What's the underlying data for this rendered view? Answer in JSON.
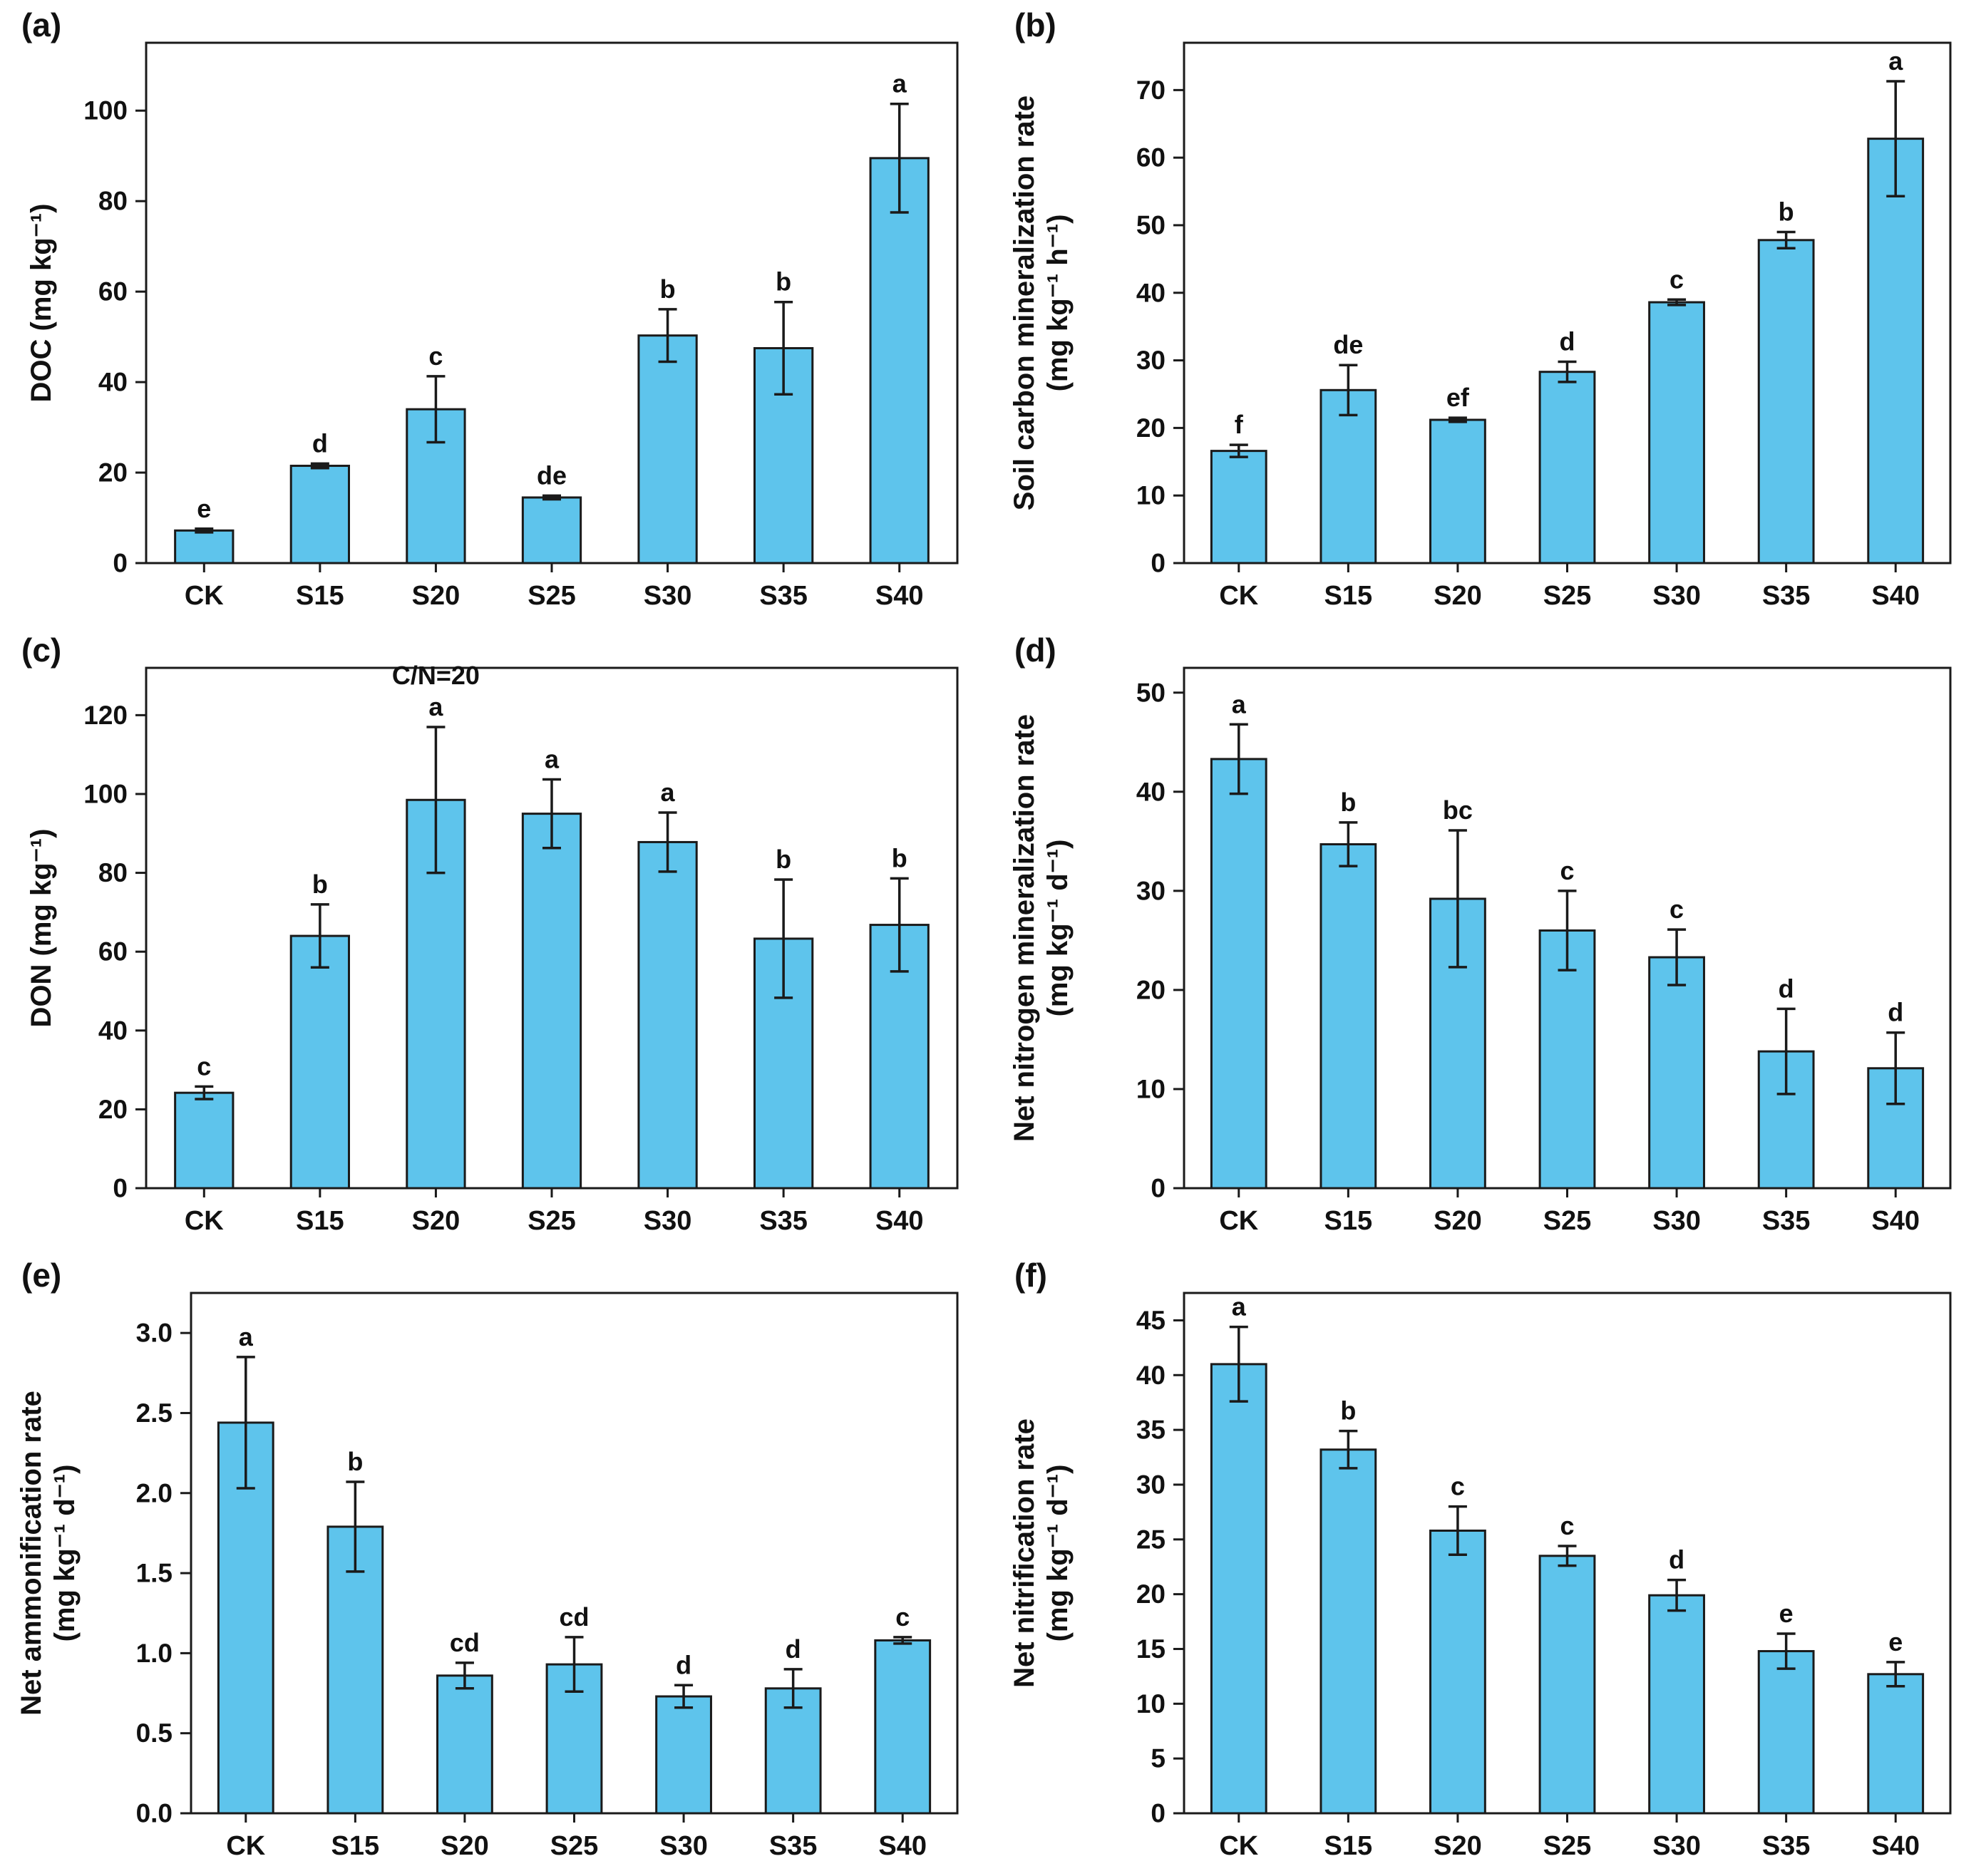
{
  "figure": {
    "background": "#ffffff",
    "bar_fill": "#5ec4ec",
    "bar_stroke": "#1a1a1a",
    "axis_color": "#1a1a1a",
    "categories": [
      "CK",
      "S15",
      "S20",
      "S25",
      "S30",
      "S35",
      "S40"
    ]
  },
  "chart_data": [
    {
      "id": "a",
      "type": "bar",
      "panel_label": "(a)",
      "ylabel_lines": [
        "DOC (mg kg⁻¹)"
      ],
      "ylim": [
        0,
        115
      ],
      "yticks": [
        0,
        20,
        40,
        60,
        80,
        100
      ],
      "ytick_labels": [
        "0",
        "20",
        "40",
        "60",
        "80",
        "100"
      ],
      "categories": [
        "CK",
        "S15",
        "S20",
        "S25",
        "S30",
        "S35",
        "S40"
      ],
      "values": [
        7.2,
        21.5,
        34.0,
        14.5,
        50.3,
        47.5,
        89.5
      ],
      "errors": [
        0.4,
        0.5,
        7.3,
        0.4,
        5.8,
        10.2,
        12.0
      ],
      "letters": [
        "e",
        "d",
        "c",
        "de",
        "b",
        "b",
        "a"
      ],
      "annotation": null
    },
    {
      "id": "b",
      "type": "bar",
      "panel_label": "(b)",
      "ylabel_lines": [
        "Soil carbon mineralization rate",
        "(mg kg⁻¹ h⁻¹)"
      ],
      "ylim": [
        0,
        77
      ],
      "yticks": [
        0,
        10,
        20,
        30,
        40,
        50,
        60,
        70
      ],
      "ytick_labels": [
        "0",
        "10",
        "20",
        "30",
        "40",
        "50",
        "60",
        "70"
      ],
      "categories": [
        "CK",
        "S15",
        "S20",
        "S25",
        "S30",
        "S35",
        "S40"
      ],
      "values": [
        16.6,
        25.6,
        21.2,
        28.3,
        38.6,
        47.8,
        62.8
      ],
      "errors": [
        0.9,
        3.7,
        0.3,
        1.5,
        0.4,
        1.2,
        8.5
      ],
      "letters": [
        "f",
        "de",
        "ef",
        "d",
        "c",
        "b",
        "a"
      ],
      "annotation": null
    },
    {
      "id": "c",
      "type": "bar",
      "panel_label": "(c)",
      "ylabel_lines": [
        "DON (mg kg⁻¹)"
      ],
      "ylim": [
        0,
        132
      ],
      "yticks": [
        0,
        20,
        40,
        60,
        80,
        100,
        120
      ],
      "ytick_labels": [
        "0",
        "20",
        "40",
        "60",
        "80",
        "100",
        "120"
      ],
      "categories": [
        "CK",
        "S15",
        "S20",
        "S25",
        "S30",
        "S35",
        "S40"
      ],
      "values": [
        24.2,
        64.0,
        98.5,
        95.0,
        87.8,
        63.3,
        66.8
      ],
      "errors": [
        1.6,
        8.0,
        18.5,
        8.7,
        7.5,
        15.0,
        11.8
      ],
      "letters": [
        "c",
        "b",
        "a",
        "a",
        "a",
        "b",
        "b"
      ],
      "annotation": {
        "text": "C/N=20",
        "category": "S20"
      }
    },
    {
      "id": "d",
      "type": "bar",
      "panel_label": "(d)",
      "ylabel_lines": [
        "Net nitrogen mineralization rate",
        "(mg kg⁻¹ d⁻¹)"
      ],
      "ylim": [
        0,
        52.5
      ],
      "yticks": [
        0,
        10,
        20,
        30,
        40,
        50
      ],
      "ytick_labels": [
        "0",
        "10",
        "20",
        "30",
        "40",
        "50"
      ],
      "categories": [
        "CK",
        "S15",
        "S20",
        "S25",
        "S30",
        "S35",
        "S40"
      ],
      "values": [
        43.3,
        34.7,
        29.2,
        26.0,
        23.3,
        13.8,
        12.1
      ],
      "errors": [
        3.5,
        2.2,
        6.9,
        4.0,
        2.8,
        4.3,
        3.6
      ],
      "letters": [
        "a",
        "b",
        "bc",
        "c",
        "c",
        "d",
        "d"
      ],
      "annotation": null
    },
    {
      "id": "e",
      "type": "bar",
      "panel_label": "(e)",
      "ylabel_lines": [
        "Net ammonification rate",
        "(mg kg⁻¹ d⁻¹)"
      ],
      "ylim": [
        0,
        3.25
      ],
      "yticks": [
        0,
        0.5,
        1.0,
        1.5,
        2.0,
        2.5,
        3.0
      ],
      "ytick_labels": [
        "0.0",
        "0.5",
        "1.0",
        "1.5",
        "2.0",
        "2.5",
        "3.0"
      ],
      "categories": [
        "CK",
        "S15",
        "S20",
        "S25",
        "S30",
        "S35",
        "S40"
      ],
      "values": [
        2.44,
        1.79,
        0.86,
        0.93,
        0.73,
        0.78,
        1.08
      ],
      "errors": [
        0.41,
        0.28,
        0.08,
        0.17,
        0.07,
        0.12,
        0.02
      ],
      "letters": [
        "a",
        "b",
        "cd",
        "cd",
        "d",
        "d",
        "c"
      ],
      "annotation": null
    },
    {
      "id": "f",
      "type": "bar",
      "panel_label": "(f)",
      "ylabel_lines": [
        "Net nitrification rate",
        "(mg kg⁻¹ d⁻¹)"
      ],
      "ylim": [
        0,
        47.5
      ],
      "yticks": [
        0,
        5,
        10,
        15,
        20,
        25,
        30,
        35,
        40,
        45
      ],
      "ytick_labels": [
        "0",
        "5",
        "10",
        "15",
        "20",
        "25",
        "30",
        "35",
        "40",
        "45"
      ],
      "categories": [
        "CK",
        "S15",
        "S20",
        "S25",
        "S30",
        "S35",
        "S40"
      ],
      "values": [
        41.0,
        33.2,
        25.8,
        23.5,
        19.9,
        14.8,
        12.7
      ],
      "errors": [
        3.4,
        1.7,
        2.2,
        0.9,
        1.4,
        1.6,
        1.1
      ],
      "letters": [
        "a",
        "b",
        "c",
        "c",
        "d",
        "e",
        "e"
      ],
      "annotation": null
    }
  ]
}
